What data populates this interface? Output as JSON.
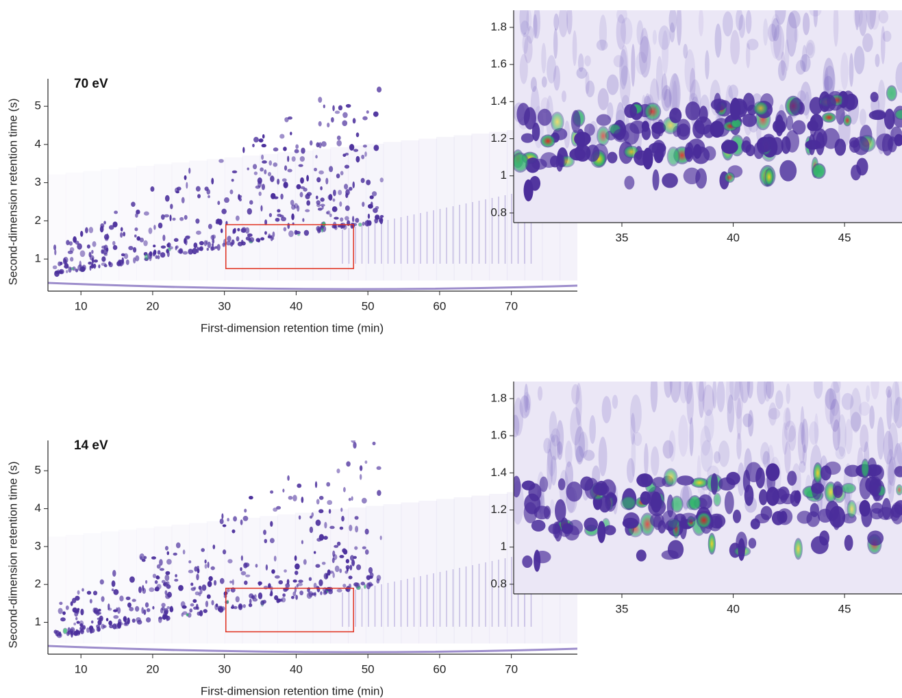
{
  "chart_data": [
    {
      "type": "heatmap",
      "annotation": "70 eV",
      "xlabel": "First-dimension retention time (min)",
      "ylabel": "Second-dimension retention time (s)",
      "xlim": [
        5.4,
        79.2
      ],
      "ylim": [
        0.16,
        5.72
      ],
      "xticks": [
        10,
        20,
        30,
        40,
        50,
        60,
        70
      ],
      "yticks": [
        1,
        2,
        3,
        4,
        5
      ],
      "zoom_region": {
        "x": [
          30.2,
          48
        ],
        "y": [
          0.75,
          1.9
        ]
      }
    },
    {
      "type": "heatmap",
      "xlim": [
        30.14,
        47.58
      ],
      "ylim": [
        0.748,
        1.892
      ],
      "xticks": [
        35,
        40,
        45
      ],
      "yticks": [
        0.8,
        1.0,
        1.2,
        1.4,
        1.6,
        1.8
      ]
    },
    {
      "type": "heatmap",
      "annotation": "14 eV",
      "xlabel": "First-dimension retention time (min)",
      "ylabel": "Second-dimension retention time (s)",
      "xlim": [
        5.4,
        79.2
      ],
      "ylim": [
        0.16,
        5.8
      ],
      "xticks": [
        10,
        20,
        30,
        40,
        50,
        60,
        70
      ],
      "yticks": [
        1,
        2,
        3,
        4,
        5
      ],
      "zoom_region": {
        "x": [
          30.2,
          48
        ],
        "y": [
          0.75,
          1.9
        ]
      }
    },
    {
      "type": "heatmap",
      "xlim": [
        30.14,
        47.58
      ],
      "ylim": [
        0.748,
        1.892
      ],
      "xticks": [
        35,
        40,
        45
      ],
      "yticks": [
        0.8,
        1.0,
        1.2,
        1.4,
        1.6,
        1.8
      ]
    }
  ]
}
